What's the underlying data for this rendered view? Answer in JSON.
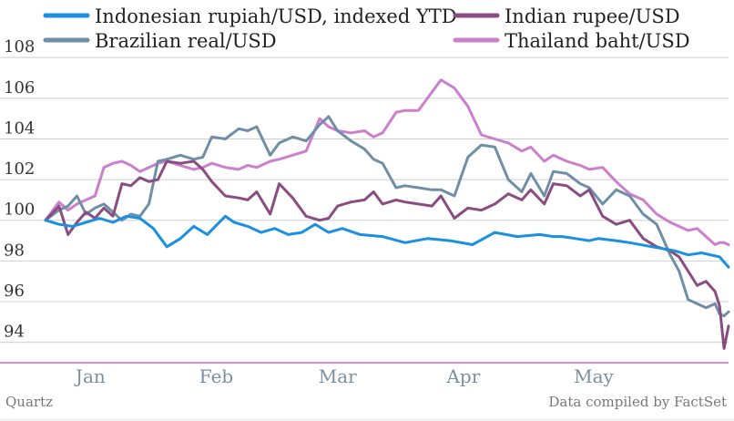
{
  "colors": {
    "idr": "#1b8fe0",
    "inr": "#8a4d82",
    "brl": "#6f8fa6",
    "thb": "#cc7fcc",
    "baseline": "#cc66cc",
    "grid": "#cfcfcf",
    "month_text": "#7a8fa0"
  },
  "footer": {
    "source_left": "Quartz",
    "source_right": "Data compiled by FactSet"
  },
  "chart_data": {
    "type": "line",
    "title": "",
    "xlabel": "",
    "ylabel": "",
    "ylim": [
      93,
      108.5
    ],
    "yticks": [
      94,
      96,
      98,
      100,
      102,
      104,
      106,
      108
    ],
    "x_tick_labels": [
      "Jan",
      "Feb",
      "Mar",
      "Apr",
      "May"
    ],
    "grid": true,
    "legend_placement": "top",
    "series": [
      {
        "name": "Indonesian rupiah/USD, indexed YTD",
        "color": "#1b8fe0",
        "x": [
          0,
          3,
          6,
          9,
          12,
          15,
          18,
          21,
          24,
          27,
          30,
          33,
          36,
          40,
          42,
          45,
          48,
          51,
          54,
          57,
          60,
          63,
          66,
          70,
          75,
          80,
          85,
          90,
          95,
          100,
          105,
          110,
          113,
          115,
          118,
          121,
          123,
          127,
          130,
          135,
          140,
          143,
          146,
          148,
          150,
          152
        ],
        "y": [
          100.0,
          99.8,
          99.7,
          99.9,
          100.1,
          99.9,
          100.2,
          100.1,
          99.6,
          98.7,
          99.1,
          99.7,
          99.3,
          100.2,
          99.9,
          99.7,
          99.4,
          99.6,
          99.3,
          99.4,
          99.8,
          99.4,
          99.6,
          99.3,
          99.2,
          98.9,
          99.1,
          99.0,
          98.8,
          99.4,
          99.2,
          99.3,
          99.2,
          99.2,
          99.1,
          99.0,
          99.1,
          99.0,
          98.9,
          98.7,
          98.5,
          98.3,
          98.4,
          98.3,
          98.2,
          97.7
        ]
      },
      {
        "name": "Indian rupee/USD",
        "color": "#8a4d82",
        "x": [
          0,
          3,
          5,
          7,
          9,
          11,
          13,
          15,
          17,
          19,
          21,
          23,
          25,
          27,
          30,
          33,
          35,
          37,
          40,
          43,
          45,
          47,
          50,
          52,
          55,
          58,
          61,
          63,
          65,
          68,
          71,
          73,
          75,
          78,
          80,
          83,
          86,
          88,
          91,
          94,
          97,
          100,
          103,
          106,
          108,
          111,
          113,
          116,
          119,
          121,
          124,
          127,
          130,
          133,
          136,
          139,
          141,
          143,
          145,
          147,
          149,
          150,
          151,
          152
        ],
        "y": [
          100.0,
          100.7,
          99.3,
          99.9,
          100.4,
          100.1,
          100.6,
          100.2,
          101.8,
          101.7,
          102.1,
          101.9,
          102.0,
          102.9,
          102.8,
          102.9,
          102.5,
          101.9,
          101.2,
          101.1,
          101.0,
          101.4,
          100.3,
          101.8,
          101.1,
          100.2,
          100.0,
          100.1,
          100.7,
          100.9,
          101.0,
          101.4,
          100.8,
          101.0,
          100.9,
          100.8,
          100.7,
          101.2,
          100.1,
          100.6,
          100.5,
          100.8,
          101.3,
          101.0,
          101.5,
          100.8,
          101.8,
          101.7,
          101.2,
          101.5,
          100.2,
          99.8,
          100.0,
          99.1,
          98.7,
          98.5,
          98.2,
          97.5,
          96.8,
          97.0,
          96.5,
          95.8,
          93.7,
          94.8
        ]
      },
      {
        "name": "Brazilian real/USD",
        "color": "#6f8fa6",
        "x": [
          0,
          3,
          5,
          7,
          9,
          11,
          13,
          15,
          17,
          19,
          21,
          23,
          25,
          27,
          30,
          33,
          35,
          37,
          40,
          43,
          45,
          47,
          50,
          52,
          55,
          58,
          61,
          63,
          65,
          68,
          71,
          73,
          75,
          78,
          80,
          83,
          86,
          88,
          91,
          94,
          97,
          100,
          103,
          106,
          108,
          111,
          113,
          116,
          119,
          121,
          124,
          127,
          130,
          133,
          136,
          139,
          141,
          143,
          145,
          147,
          149,
          150,
          151,
          152
        ],
        "y": [
          100.0,
          100.5,
          100.7,
          101.2,
          100.3,
          100.6,
          100.8,
          100.4,
          100.0,
          100.3,
          100.2,
          100.8,
          102.9,
          103.0,
          103.2,
          103.0,
          103.1,
          104.1,
          104.0,
          104.5,
          104.4,
          104.6,
          103.2,
          103.8,
          104.1,
          103.9,
          104.7,
          105.1,
          104.4,
          103.9,
          103.5,
          103.0,
          102.8,
          101.6,
          101.7,
          101.6,
          101.5,
          101.5,
          101.2,
          103.1,
          103.7,
          103.6,
          102.0,
          101.4,
          102.3,
          101.2,
          102.4,
          102.3,
          101.8,
          101.6,
          100.8,
          101.5,
          101.2,
          100.3,
          99.8,
          98.3,
          97.5,
          96.1,
          95.9,
          95.7,
          95.9,
          95.4,
          95.3,
          95.5
        ]
      },
      {
        "name": "Thailand baht/USD",
        "color": "#cc7fcc",
        "x": [
          0,
          3,
          5,
          7,
          9,
          11,
          13,
          15,
          17,
          19,
          21,
          23,
          25,
          27,
          30,
          33,
          35,
          37,
          40,
          43,
          45,
          47,
          50,
          52,
          55,
          58,
          61,
          63,
          65,
          68,
          71,
          73,
          75,
          78,
          80,
          83,
          86,
          88,
          91,
          94,
          97,
          100,
          103,
          106,
          108,
          111,
          113,
          116,
          119,
          121,
          124,
          127,
          130,
          133,
          136,
          139,
          141,
          143,
          145,
          147,
          149,
          150,
          151,
          152
        ],
        "y": [
          100.0,
          100.9,
          100.5,
          100.8,
          101.0,
          101.2,
          102.6,
          102.8,
          102.9,
          102.7,
          102.4,
          102.6,
          102.8,
          102.9,
          102.7,
          102.5,
          102.6,
          102.8,
          102.6,
          102.5,
          102.7,
          102.6,
          102.9,
          103.0,
          103.2,
          103.4,
          105.0,
          104.6,
          104.4,
          104.3,
          104.4,
          104.1,
          104.3,
          105.3,
          105.4,
          105.4,
          106.3,
          106.9,
          106.5,
          105.6,
          104.2,
          104.0,
          103.8,
          103.4,
          103.6,
          102.9,
          103.2,
          102.9,
          102.7,
          102.5,
          102.6,
          101.9,
          101.3,
          101.0,
          100.3,
          99.9,
          99.7,
          99.5,
          99.6,
          99.2,
          98.8,
          98.9,
          98.9,
          98.8
        ]
      }
    ]
  }
}
